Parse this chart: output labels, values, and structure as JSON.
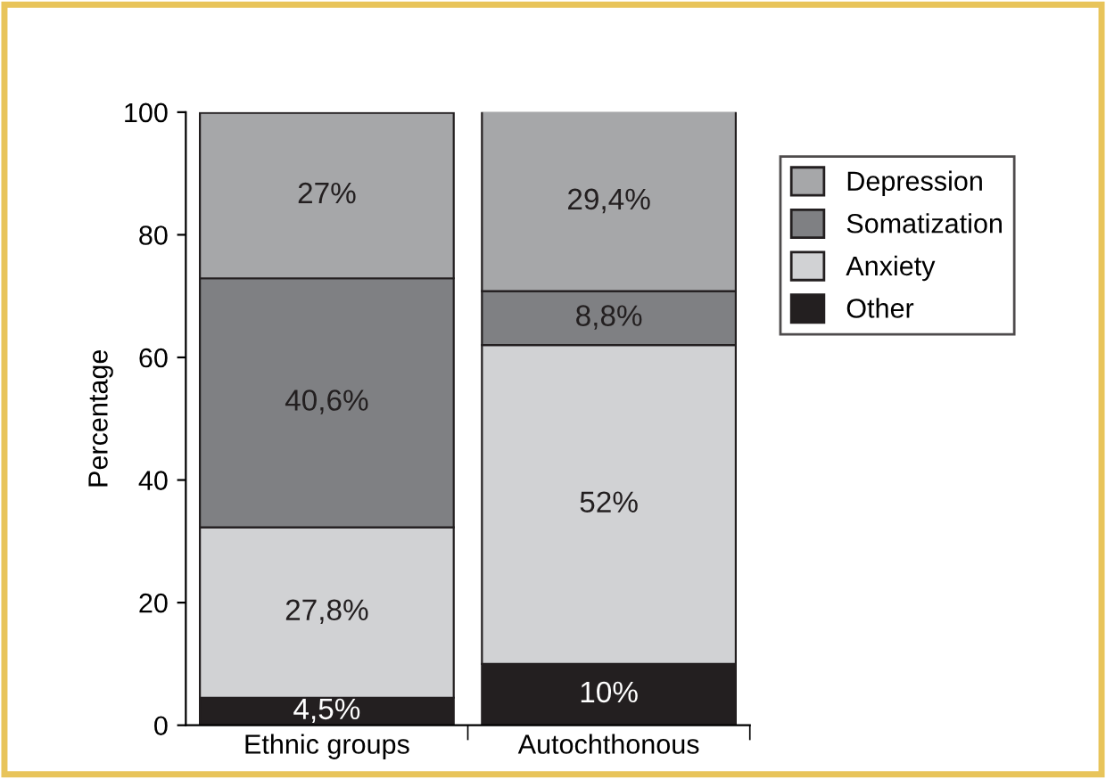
{
  "chart_data": {
    "type": "bar",
    "stacked": true,
    "ylabel": "Percentage",
    "categories": [
      "Ethnic groups",
      "Autochthonous"
    ],
    "series": [
      {
        "name": "Other",
        "color": "#231f20",
        "values": [
          4.5,
          10
        ],
        "value_labels": [
          "4,5%",
          "10%"
        ]
      },
      {
        "name": "Anxiety",
        "color": "#d1d2d4",
        "values": [
          27.8,
          52
        ],
        "value_labels": [
          "27,8%",
          "52%"
        ]
      },
      {
        "name": "Somatization",
        "color": "#7f8083",
        "values": [
          40.6,
          8.8
        ],
        "value_labels": [
          "40,6%",
          "8,8%"
        ]
      },
      {
        "name": "Depression",
        "color": "#a6a7a9",
        "values": [
          27,
          29.4
        ],
        "value_labels": [
          "27%",
          "29,4%"
        ]
      }
    ],
    "ylim": [
      0,
      100
    ],
    "yticks": [
      0,
      20,
      40,
      60,
      80,
      100
    ],
    "legend": "right",
    "grid": false
  }
}
